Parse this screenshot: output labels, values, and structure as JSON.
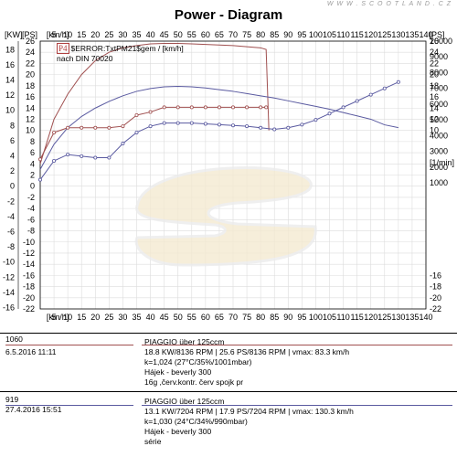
{
  "header": {
    "title": "Power - Diagram",
    "watermark": "W W W . S C O O T L A N D . C Z"
  },
  "axes": {
    "left_outer_unit": "[KW]",
    "left_inner_unit": "[PS]",
    "right_unit": "[PS]",
    "top_speed_unit": "[km/h]",
    "bottom_speed_unit": "[km/h]",
    "rpm_unit": "[1/min]",
    "kw_ticks": [
      "18",
      "16",
      "14",
      "12",
      "10",
      "8",
      "6",
      "4",
      "2",
      "0",
      "-2",
      "-4",
      "-6",
      "-8",
      "-10",
      "-12",
      "-14",
      "-16"
    ],
    "ps_ticks": [
      "26",
      "24",
      "22",
      "20",
      "18",
      "16",
      "14",
      "12",
      "10",
      "8",
      "6",
      "4",
      "2",
      "0",
      "-2",
      "-4",
      "-6",
      "-8",
      "-10",
      "-12",
      "-14",
      "-16",
      "-18",
      "-20",
      "-22"
    ],
    "right_ps_ticks": [
      "26",
      "24",
      "22",
      "20",
      "18",
      "16",
      "14",
      "12",
      "10",
      "8",
      "6",
      "4",
      "2",
      "0",
      "-2",
      "-4",
      "-6",
      "-8",
      "-10",
      "-12",
      "-14",
      "-16",
      "-18",
      "-20",
      "-22"
    ],
    "rpm_ticks": [
      "10000",
      "9000",
      "8000",
      "7000",
      "6000",
      "5000",
      "4000",
      "3000",
      "2000",
      "1000"
    ],
    "speed_ticks": [
      "0",
      "5",
      "10",
      "15",
      "20",
      "25",
      "30",
      "35",
      "40",
      "45",
      "50",
      "55",
      "60",
      "65",
      "70",
      "75",
      "80",
      "85",
      "90",
      "95",
      "100",
      "105",
      "110",
      "115",
      "120",
      "125",
      "130",
      "135",
      "140"
    ]
  },
  "legend": {
    "badge": "P4",
    "line1": "$ERROR:TxtPM21$gem / [km/h]",
    "line2": "nach DIN 70020"
  },
  "runs": [
    {
      "id": "1060",
      "date": "6.5.2016  11:11",
      "color": "#a05050",
      "model": "PIAGGIO über 125ccm",
      "power": "18.8 KW/8136 RPM  |  25.6 PS/8136 RPM  |  vmax: 83.3 km/h",
      "conditions": "k=1,024 (27°C/35%/1001mbar)",
      "owner": "Hájek - beverly 300",
      "note": "16g ,červ.kontr. červ spojk pr"
    },
    {
      "id": "919",
      "date": "27.4.2016  15:51",
      "color": "#5a5aa0",
      "model": "PIAGGIO über 125ccm",
      "power": "13.1 KW/7204 RPM  |  17.9 PS/7204 RPM  |  vmax: 130.3 km/h",
      "conditions": "k=1,030 (24°C/34%/990mbar)",
      "owner": "Hájek - beverly 300",
      "note": "série"
    }
  ],
  "chart_data": {
    "type": "line",
    "title": "Power - Diagram",
    "xlabel": "[km/h]",
    "ylabel": "[PS]",
    "xlim": [
      0,
      140
    ],
    "ylim_ps": [
      -22,
      26
    ],
    "ylim_rpm": [
      -7000,
      10000
    ],
    "series": [
      {
        "name": "1060",
        "axis": "ps",
        "color": "#a05050",
        "x": [
          0,
          5,
          10,
          15,
          20,
          25,
          30,
          35,
          40,
          45,
          50,
          55,
          60,
          65,
          70,
          75,
          80,
          82,
          83
        ],
        "y": [
          4,
          12,
          16.5,
          20,
          22.5,
          24,
          24.8,
          25.2,
          25.5,
          25.6,
          25.6,
          25.5,
          25.4,
          25.3,
          25.2,
          25.0,
          24.8,
          24.5,
          10
        ]
      },
      {
        "name": "919",
        "axis": "ps",
        "color": "#5a5aa0",
        "x": [
          0,
          5,
          10,
          15,
          20,
          25,
          30,
          35,
          40,
          45,
          50,
          55,
          60,
          65,
          70,
          75,
          80,
          85,
          90,
          95,
          100,
          105,
          110,
          115,
          120,
          125,
          130
        ],
        "y": [
          3,
          7.5,
          10.5,
          12.5,
          14,
          15.2,
          16.2,
          17,
          17.5,
          17.8,
          17.9,
          17.8,
          17.6,
          17.3,
          17.0,
          16.6,
          16.2,
          15.8,
          15.3,
          14.8,
          14.3,
          13.8,
          13.2,
          12.6,
          12.0,
          11.0,
          10.5
        ]
      },
      {
        "name": "1060",
        "axis": "rpm",
        "color": "#a05050",
        "x": [
          0,
          5,
          10,
          15,
          20,
          25,
          30,
          35,
          40,
          45,
          50,
          55,
          60,
          65,
          70,
          75,
          80,
          82
        ],
        "y": [
          2500,
          4200,
          4500,
          4500,
          4500,
          4500,
          4600,
          5300,
          5500,
          5800,
          5800,
          5800,
          5800,
          5800,
          5800,
          5800,
          5800,
          5800
        ]
      },
      {
        "name": "919",
        "axis": "rpm",
        "color": "#5a5aa0",
        "x": [
          0,
          5,
          10,
          15,
          20,
          25,
          30,
          35,
          40,
          45,
          50,
          55,
          60,
          65,
          70,
          75,
          80,
          85,
          90,
          95,
          100,
          105,
          110,
          115,
          120,
          125,
          130
        ],
        "y": [
          1200,
          2400,
          2800,
          2700,
          2600,
          2600,
          3500,
          4200,
          4600,
          4800,
          4800,
          4800,
          4750,
          4700,
          4650,
          4600,
          4500,
          4400,
          4500,
          4700,
          5000,
          5400,
          5800,
          6200,
          6600,
          7000,
          7400
        ]
      }
    ],
    "grid": true
  }
}
